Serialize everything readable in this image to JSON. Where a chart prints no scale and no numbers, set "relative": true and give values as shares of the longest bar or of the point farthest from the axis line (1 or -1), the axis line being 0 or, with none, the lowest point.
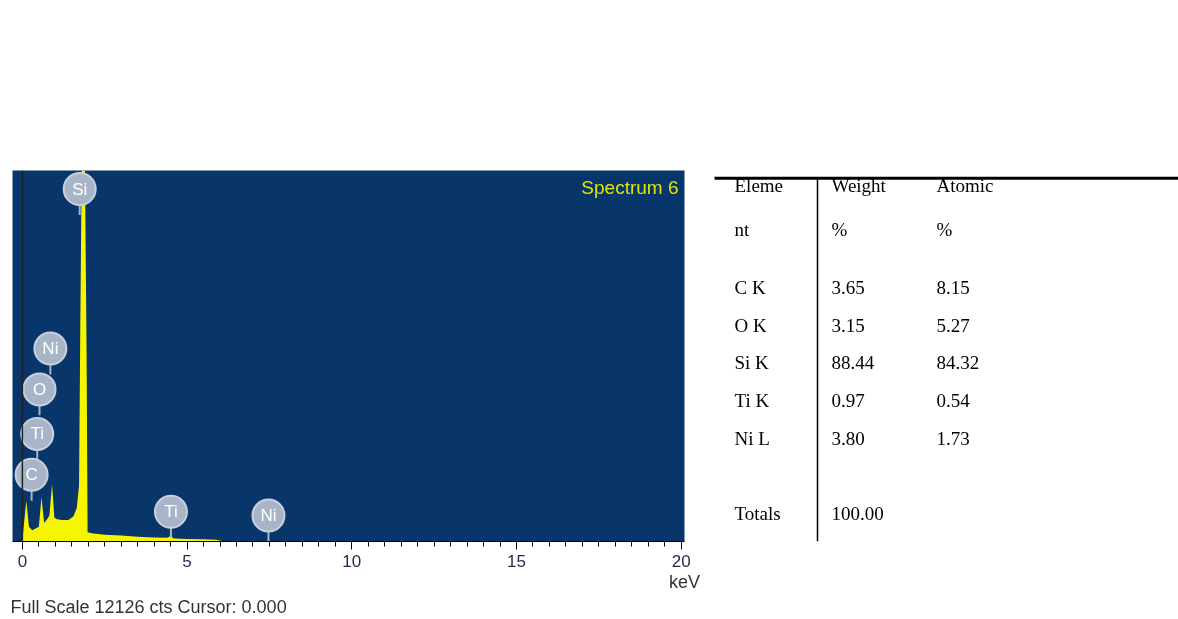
{
  "chart_data": [
    {
      "type": "area",
      "title": "Spectrum 6",
      "xlabel": "keV",
      "relative": true,
      "color": "#f5f500",
      "x": [
        0,
        0.05,
        0.12,
        0.2,
        0.3,
        0.4,
        0.5,
        0.58,
        0.66,
        0.75,
        0.82,
        0.9,
        0.97,
        1.05,
        1.2,
        1.4,
        1.55,
        1.65,
        1.72,
        1.76,
        1.8,
        1.9,
        1.95,
        1.98,
        2.1,
        2.5,
        3.0,
        3.5,
        4.0,
        4.4,
        4.5,
        4.6,
        5.0,
        5.5,
        5.9,
        6.0,
        6.3,
        20
      ],
      "values": [
        0,
        0.05,
        0.11,
        0.04,
        0.03,
        0.035,
        0.04,
        0.12,
        0.05,
        0.06,
        0.07,
        0.155,
        0.065,
        0.06,
        0.058,
        0.058,
        0.068,
        0.09,
        0.15,
        0.6,
        1.0,
        1.0,
        0.5,
        0.025,
        0.022,
        0.018,
        0.016,
        0.013,
        0.011,
        0.01,
        0.015,
        0.008,
        0.007,
        0.006,
        0.005,
        0.002,
        0,
        0
      ],
      "xlim": [
        -0.3,
        20.1
      ],
      "xticks": [
        0,
        5,
        10,
        15,
        20
      ],
      "grid": false,
      "ref_lines": [
        {
          "axis": "x",
          "value": 0,
          "color": "#222222"
        }
      ],
      "annotations": [
        {
          "text": "Si",
          "x": 1.74,
          "y": 0.95
        },
        {
          "text": "Ni",
          "x": 0.85,
          "y": 0.52
        },
        {
          "text": "O",
          "x": 0.52,
          "y": 0.41
        },
        {
          "text": "Ti",
          "x": 0.45,
          "y": 0.29
        },
        {
          "text": "C",
          "x": 0.28,
          "y": 0.18
        },
        {
          "text": "Ti",
          "x": 4.51,
          "y": 0.08
        },
        {
          "text": "Ni",
          "x": 7.47,
          "y": 0.07
        },
        "Full Scale 12126 cts Cursor: 0.000"
      ]
    },
    {
      "type": "other",
      "annotations": [
        "Eleme\nnt",
        "Weight\n%",
        "Atomic\n%",
        "C K",
        "3.65",
        "8.15",
        "O K",
        "3.15",
        "5.27",
        "Si K",
        "88.44",
        "84.32",
        "Ti K",
        "0.97",
        "0.54",
        "Ni L",
        "3.80",
        "1.73",
        "Totals",
        "100.00"
      ]
    }
  ]
}
